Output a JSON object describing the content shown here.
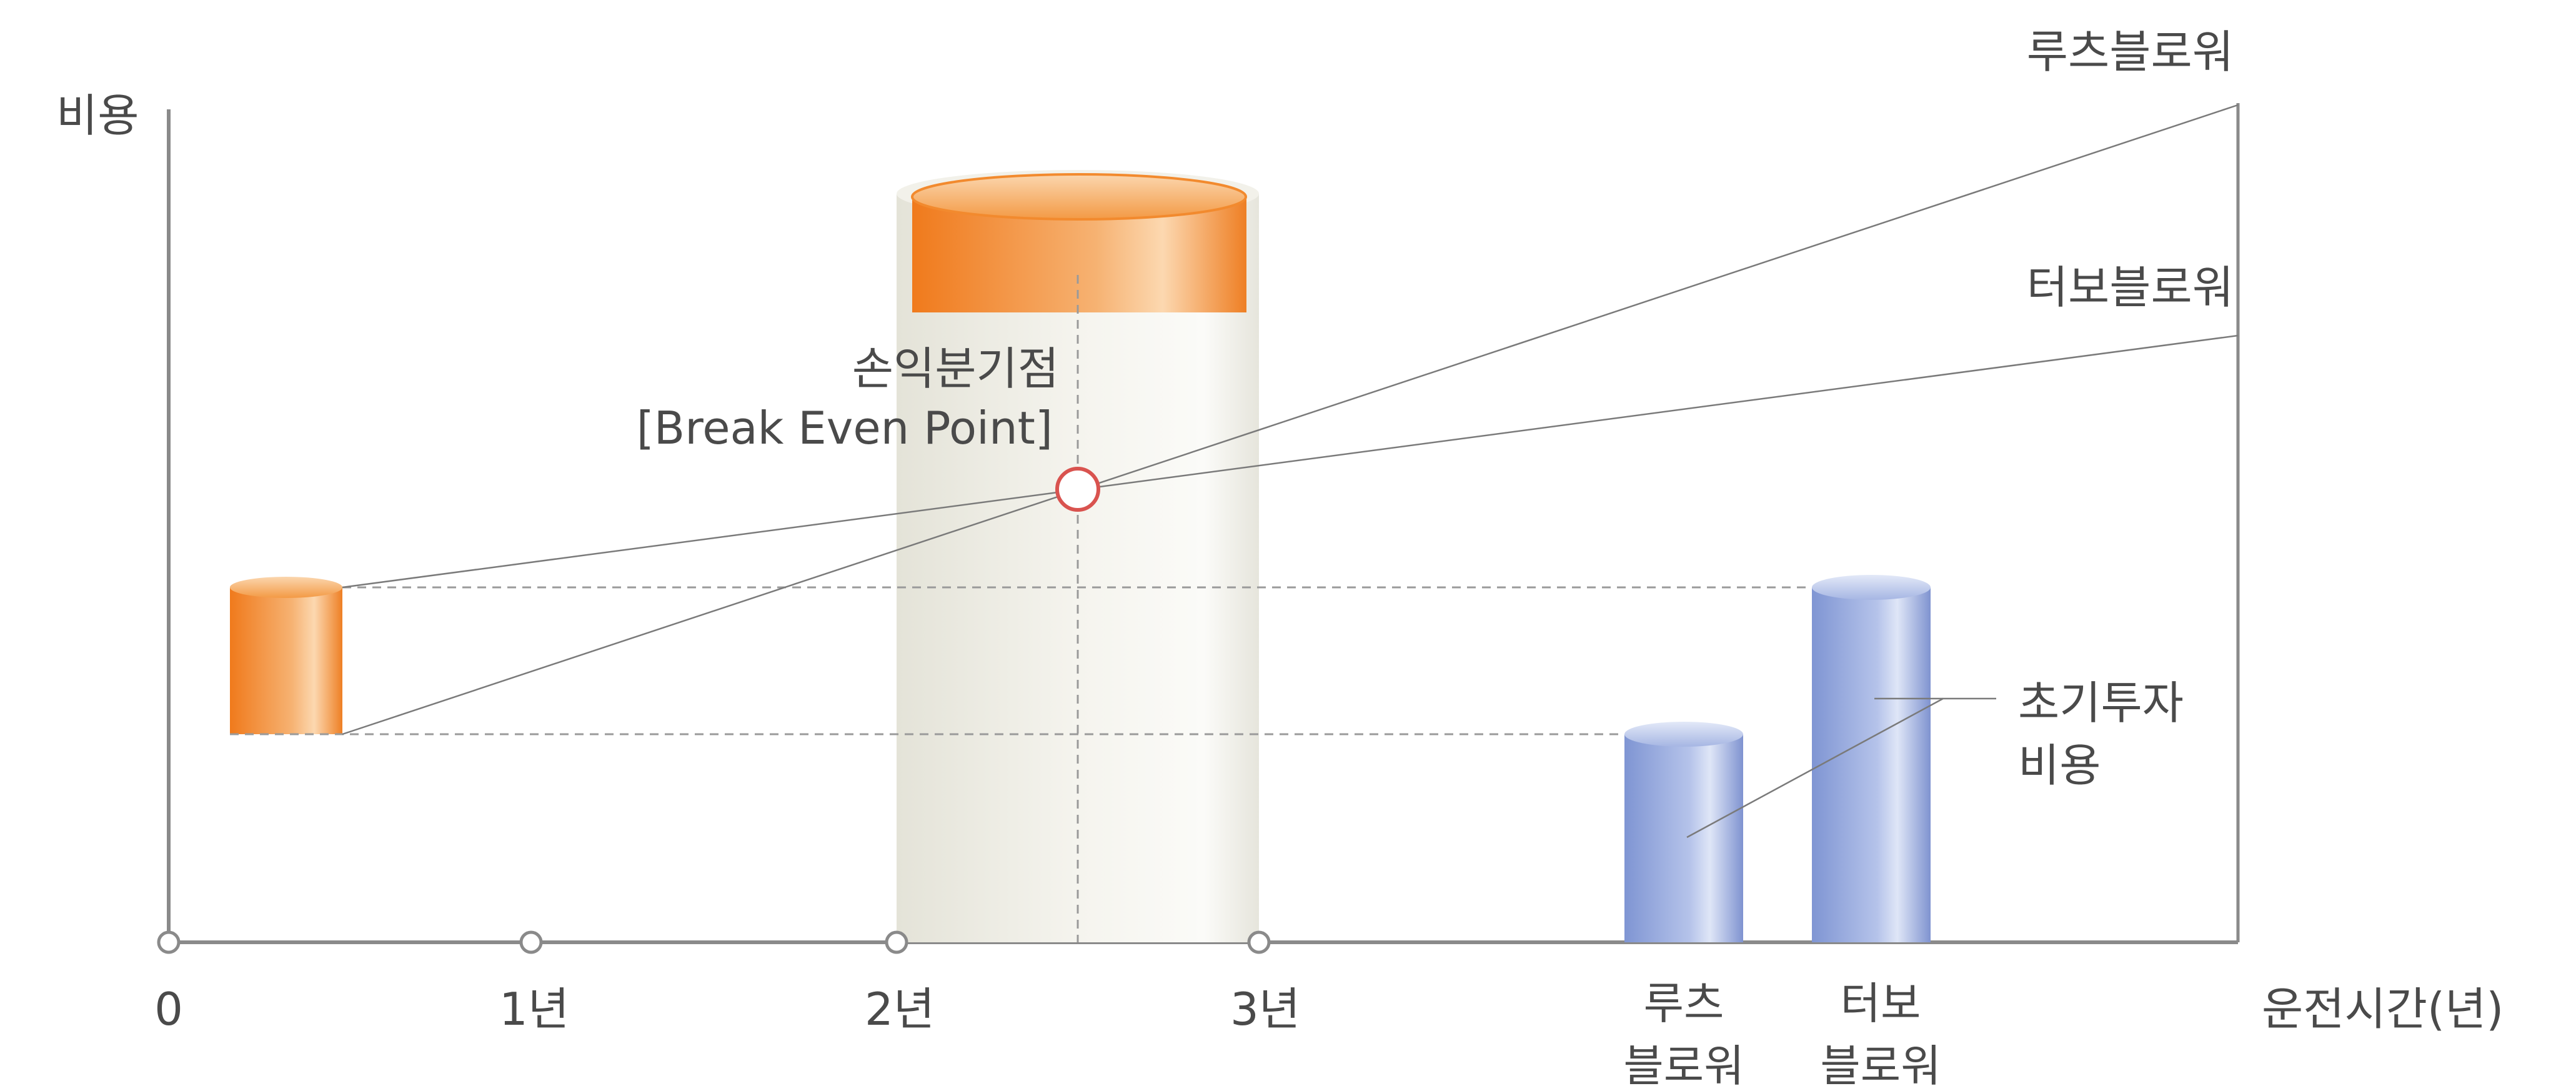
{
  "y_axis_label": "비용",
  "x_axis_label": "운전시간(년)",
  "x_ticks": [
    "0",
    "1년",
    "2년",
    "3년"
  ],
  "bar_labels": {
    "roots": [
      "루츠",
      "블로워"
    ],
    "turbo": [
      "터보",
      "블로워"
    ]
  },
  "line_labels": {
    "roots": "루츠블로워",
    "turbo": "터보블로워"
  },
  "break_even": {
    "label_ko": "손익분기점",
    "label_en": "[Break Even Point]"
  },
  "initial_cost_label": [
    "초기투자",
    "비용"
  ],
  "colors": {
    "axis": "#8a8a8a",
    "orange": "#f28a2e",
    "blue": "#8fa3d9",
    "cream": "#ecebe3",
    "marker": "#d9534f"
  }
}
